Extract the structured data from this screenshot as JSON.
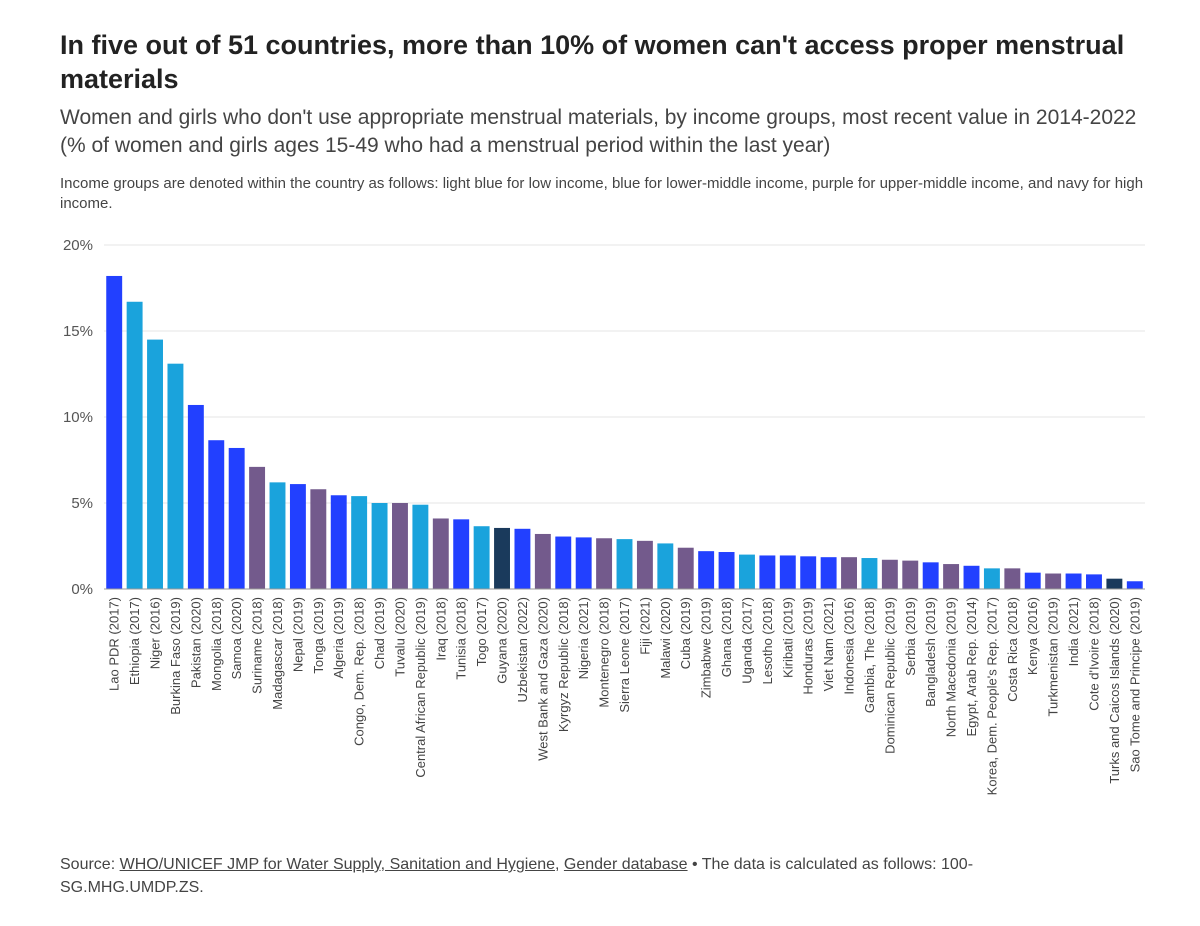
{
  "header": {
    "title": "In five out of 51 countries, more than 10% of women can't access proper menstrual materials",
    "subtitle": "Women and girls who don't use appropriate menstrual materials, by income groups, most recent value in 2014-2022 (% of women and girls ages 15-49 who had a menstrual period within the last year)",
    "note": "Income groups are denoted within the country as follows: light blue for low income, blue for lower-middle income, purple for upper-middle income, and navy for high income."
  },
  "footer": {
    "source_prefix": "Source: ",
    "source_link_1": "WHO/UNICEF JMP for Water Supply, Sanitation and Hygiene",
    "separator": ", ",
    "source_link_2": "Gender database",
    "calc_note": " • The data is calculated as follows: 100-SG.MHG.UMDP.ZS."
  },
  "colors": {
    "low": "#1aa3dc",
    "lower_middle": "#2240ff",
    "upper_middle": "#735a8c",
    "high": "#1a3a5c",
    "grid": "#e6e6e6",
    "axis": "#999999"
  },
  "chart_data": {
    "type": "bar",
    "y_ticks": [
      "0%",
      "5%",
      "10%",
      "15%",
      "20%"
    ],
    "ylim": [
      0,
      20
    ],
    "grid": true,
    "categories": [
      "Lao PDR (2017)",
      "Ethiopia (2017)",
      "Niger (2016)",
      "Burkina Faso (2019)",
      "Pakistan (2020)",
      "Mongolia (2018)",
      "Samoa (2020)",
      "Suriname (2018)",
      "Madagascar (2018)",
      "Nepal (2019)",
      "Tonga (2019)",
      "Algeria (2019)",
      "Congo, Dem. Rep. (2018)",
      "Chad (2019)",
      "Tuvalu (2020)",
      "Central African Republic (2019)",
      "Iraq (2018)",
      "Tunisia (2018)",
      "Togo (2017)",
      "Guyana (2020)",
      "Uzbekistan (2022)",
      "West Bank and Gaza (2020)",
      "Kyrgyz Republic (2018)",
      "Nigeria (2021)",
      "Montenegro (2018)",
      "Sierra Leone (2017)",
      "Fiji (2021)",
      "Malawi (2020)",
      "Cuba (2019)",
      "Zimbabwe (2019)",
      "Ghana (2018)",
      "Uganda (2017)",
      "Lesotho (2018)",
      "Kiribati (2019)",
      "Honduras (2019)",
      "Viet Nam (2021)",
      "Indonesia (2016)",
      "Gambia, The (2018)",
      "Dominican Republic (2019)",
      "Serbia (2019)",
      "Bangladesh (2019)",
      "North Macedonia (2019)",
      "Egypt, Arab Rep. (2014)",
      "Korea, Dem. People's Rep. (2017)",
      "Costa Rica (2018)",
      "Kenya (2016)",
      "Turkmenistan (2019)",
      "India (2021)",
      "Cote d'Ivoire (2018)",
      "Turks and Caicos Islands (2020)",
      "Sao Tome and Principe (2019)"
    ],
    "values": [
      18.2,
      16.7,
      14.5,
      13.1,
      10.7,
      8.65,
      8.2,
      7.1,
      6.2,
      6.1,
      5.8,
      5.45,
      5.4,
      5.0,
      5.0,
      4.9,
      4.1,
      4.05,
      3.65,
      3.55,
      3.5,
      3.2,
      3.05,
      3.0,
      2.95,
      2.9,
      2.8,
      2.65,
      2.4,
      2.2,
      2.15,
      2.0,
      1.95,
      1.95,
      1.9,
      1.85,
      1.85,
      1.8,
      1.7,
      1.65,
      1.55,
      1.45,
      1.35,
      1.2,
      1.2,
      0.95,
      0.9,
      0.9,
      0.85,
      0.6,
      0.45
    ],
    "income_groups": [
      "lower_middle",
      "low",
      "low",
      "low",
      "lower_middle",
      "lower_middle",
      "lower_middle",
      "upper_middle",
      "low",
      "lower_middle",
      "upper_middle",
      "lower_middle",
      "low",
      "low",
      "upper_middle",
      "low",
      "upper_middle",
      "lower_middle",
      "low",
      "high",
      "lower_middle",
      "upper_middle",
      "lower_middle",
      "lower_middle",
      "upper_middle",
      "low",
      "upper_middle",
      "low",
      "upper_middle",
      "lower_middle",
      "lower_middle",
      "low",
      "lower_middle",
      "lower_middle",
      "lower_middle",
      "lower_middle",
      "upper_middle",
      "low",
      "upper_middle",
      "upper_middle",
      "lower_middle",
      "upper_middle",
      "lower_middle",
      "low",
      "upper_middle",
      "lower_middle",
      "upper_middle",
      "lower_middle",
      "lower_middle",
      "high",
      "lower_middle"
    ]
  }
}
